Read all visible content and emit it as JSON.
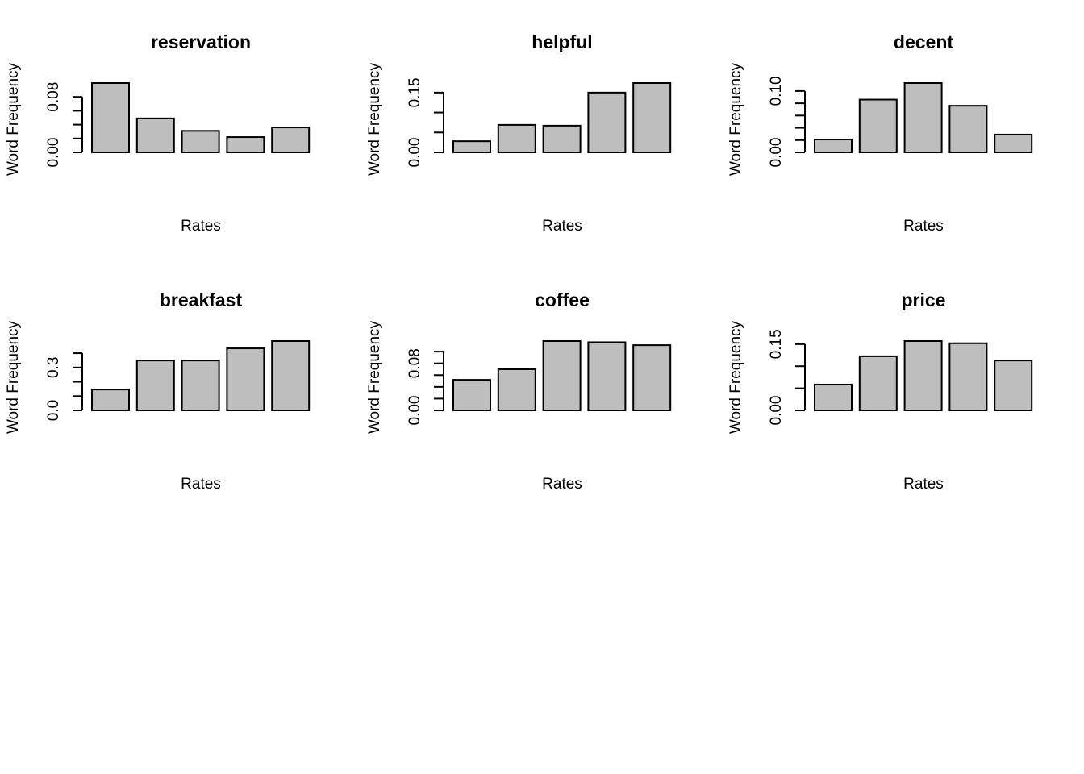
{
  "chart_data": [
    {
      "type": "bar",
      "title": "reservation",
      "xlabel": "Rates",
      "ylabel": "Word Frequency",
      "categories": [
        null,
        null,
        null,
        null,
        null
      ],
      "values": [
        0.1,
        0.049,
        0.031,
        0.022,
        0.036
      ],
      "color": "#bebebe",
      "ylim": [
        0,
        0.1
      ],
      "yticks": [
        {
          "value": 0,
          "label": "0.00"
        },
        {
          "value": 0.02,
          "label": null
        },
        {
          "value": 0.04,
          "label": null
        },
        {
          "value": 0.06,
          "label": null
        },
        {
          "value": 0.08,
          "label": "0.08"
        }
      ]
    },
    {
      "type": "bar",
      "title": "helpful",
      "xlabel": "Rates",
      "ylabel": "Word Frequency",
      "categories": [
        null,
        null,
        null,
        null,
        null
      ],
      "values": [
        0.028,
        0.069,
        0.067,
        0.15,
        0.174
      ],
      "color": "#bebebe",
      "ylim": [
        0,
        0.174
      ],
      "yticks": [
        {
          "value": 0,
          "label": "0.00"
        },
        {
          "value": 0.05,
          "label": null
        },
        {
          "value": 0.1,
          "label": null
        },
        {
          "value": 0.15,
          "label": "0.15"
        }
      ]
    },
    {
      "type": "bar",
      "title": "decent",
      "xlabel": "Rates",
      "ylabel": "Word Frequency",
      "categories": [
        null,
        null,
        null,
        null,
        null
      ],
      "values": [
        0.021,
        0.086,
        0.113,
        0.076,
        0.029
      ],
      "color": "#bebebe",
      "ylim": [
        0,
        0.113
      ],
      "yticks": [
        {
          "value": 0,
          "label": "0.00"
        },
        {
          "value": 0.02,
          "label": null
        },
        {
          "value": 0.04,
          "label": null
        },
        {
          "value": 0.06,
          "label": null
        },
        {
          "value": 0.08,
          "label": null
        },
        {
          "value": 0.1,
          "label": "0.10"
        }
      ]
    },
    {
      "type": "bar",
      "title": "breakfast",
      "xlabel": "Rates",
      "ylabel": "Word Frequency",
      "categories": [
        null,
        null,
        null,
        null,
        null
      ],
      "values": [
        0.146,
        0.349,
        0.349,
        0.434,
        0.485
      ],
      "color": "#bebebe",
      "ylim": [
        0,
        0.485
      ],
      "yticks": [
        {
          "value": 0,
          "label": "0.0"
        },
        {
          "value": 0.1,
          "label": null
        },
        {
          "value": 0.2,
          "label": null
        },
        {
          "value": 0.3,
          "label": "0.3"
        },
        {
          "value": 0.4,
          "label": null
        }
      ]
    },
    {
      "type": "bar",
      "title": "coffee",
      "xlabel": "Rates",
      "ylabel": "Word Frequency",
      "categories": [
        null,
        null,
        null,
        null,
        null
      ],
      "values": [
        0.052,
        0.07,
        0.118,
        0.116,
        0.111
      ],
      "color": "#bebebe",
      "ylim": [
        0,
        0.118
      ],
      "yticks": [
        {
          "value": 0,
          "label": "0.00"
        },
        {
          "value": 0.02,
          "label": null
        },
        {
          "value": 0.04,
          "label": null
        },
        {
          "value": 0.06,
          "label": null
        },
        {
          "value": 0.08,
          "label": "0.08"
        },
        {
          "value": 0.1,
          "label": null
        }
      ]
    },
    {
      "type": "bar",
      "title": "price",
      "xlabel": "Rates",
      "ylabel": "Word Frequency",
      "categories": [
        null,
        null,
        null,
        null,
        null
      ],
      "values": [
        0.0585,
        0.1225,
        0.157,
        0.152,
        0.113
      ],
      "color": "#bebebe",
      "ylim": [
        0,
        0.157
      ],
      "yticks": [
        {
          "value": 0,
          "label": "0.00"
        },
        {
          "value": 0.05,
          "label": null
        },
        {
          "value": 0.1,
          "label": null
        },
        {
          "value": 0.15,
          "label": "0.15"
        }
      ]
    }
  ]
}
